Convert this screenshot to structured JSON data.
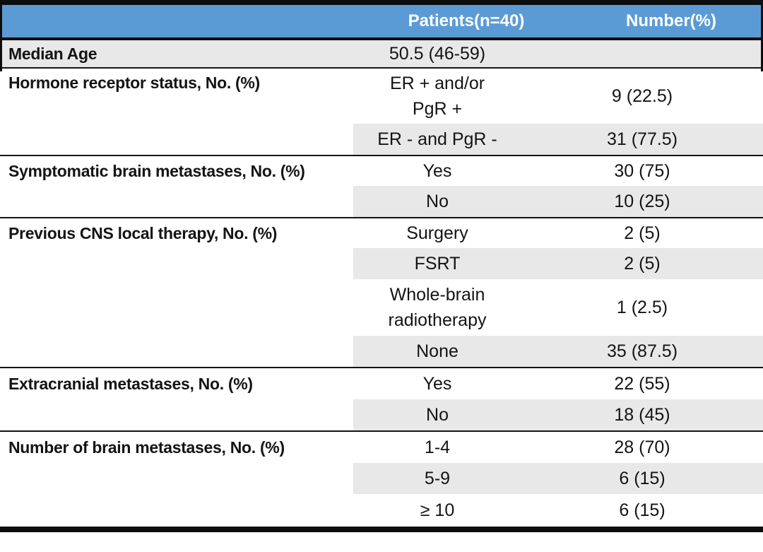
{
  "table": {
    "header": {
      "col1": "",
      "col2": "Patients(n=40)",
      "col3": "Number(%)"
    },
    "sections": [
      {
        "label": "Median Age",
        "entries": [
          {
            "value": "50.5 (46-59)",
            "number": "",
            "shaded": true
          }
        ]
      },
      {
        "label": "Hormone receptor status, No. (%)",
        "entries": [
          {
            "value": "ER + and/or\nPgR +",
            "number": "9 (22.5)",
            "shaded": false
          },
          {
            "value": "ER - and PgR -",
            "number": "31 (77.5)",
            "shaded": true
          }
        ]
      },
      {
        "label": "Symptomatic brain metastases, No. (%)",
        "entries": [
          {
            "value": "Yes",
            "number": "30 (75)",
            "shaded": false
          },
          {
            "value": "No",
            "number": "10 (25)",
            "shaded": true
          }
        ]
      },
      {
        "label": "Previous CNS local therapy, No. (%)",
        "entries": [
          {
            "value": "Surgery",
            "number": "2 (5)",
            "shaded": false
          },
          {
            "value": "FSRT",
            "number": "2 (5)",
            "shaded": true
          },
          {
            "value": "Whole-brain\nradiotherapy",
            "number": "1 (2.5)",
            "shaded": false
          },
          {
            "value": "None",
            "number": "35 (87.5)",
            "shaded": true
          }
        ]
      },
      {
        "label": "Extracranial metastases, No. (%)",
        "entries": [
          {
            "value": "Yes",
            "number": "22 (55)",
            "shaded": false
          },
          {
            "value": "No",
            "number": "18 (45)",
            "shaded": true
          }
        ]
      },
      {
        "label": "Number of brain metastases, No. (%)",
        "entries": [
          {
            "value": "1-4",
            "number": "28 (70)",
            "shaded": false
          },
          {
            "value": "5-9",
            "number": "6 (15)",
            "shaded": true
          },
          {
            "value": "≥ 10",
            "number": "6 (15)",
            "shaded": false
          }
        ]
      }
    ]
  },
  "colors": {
    "header_bg": "#5B9BD5",
    "header_text": "#FFFFFF",
    "row_shade": "#E9E8E8",
    "border": "#0D0D0D"
  }
}
